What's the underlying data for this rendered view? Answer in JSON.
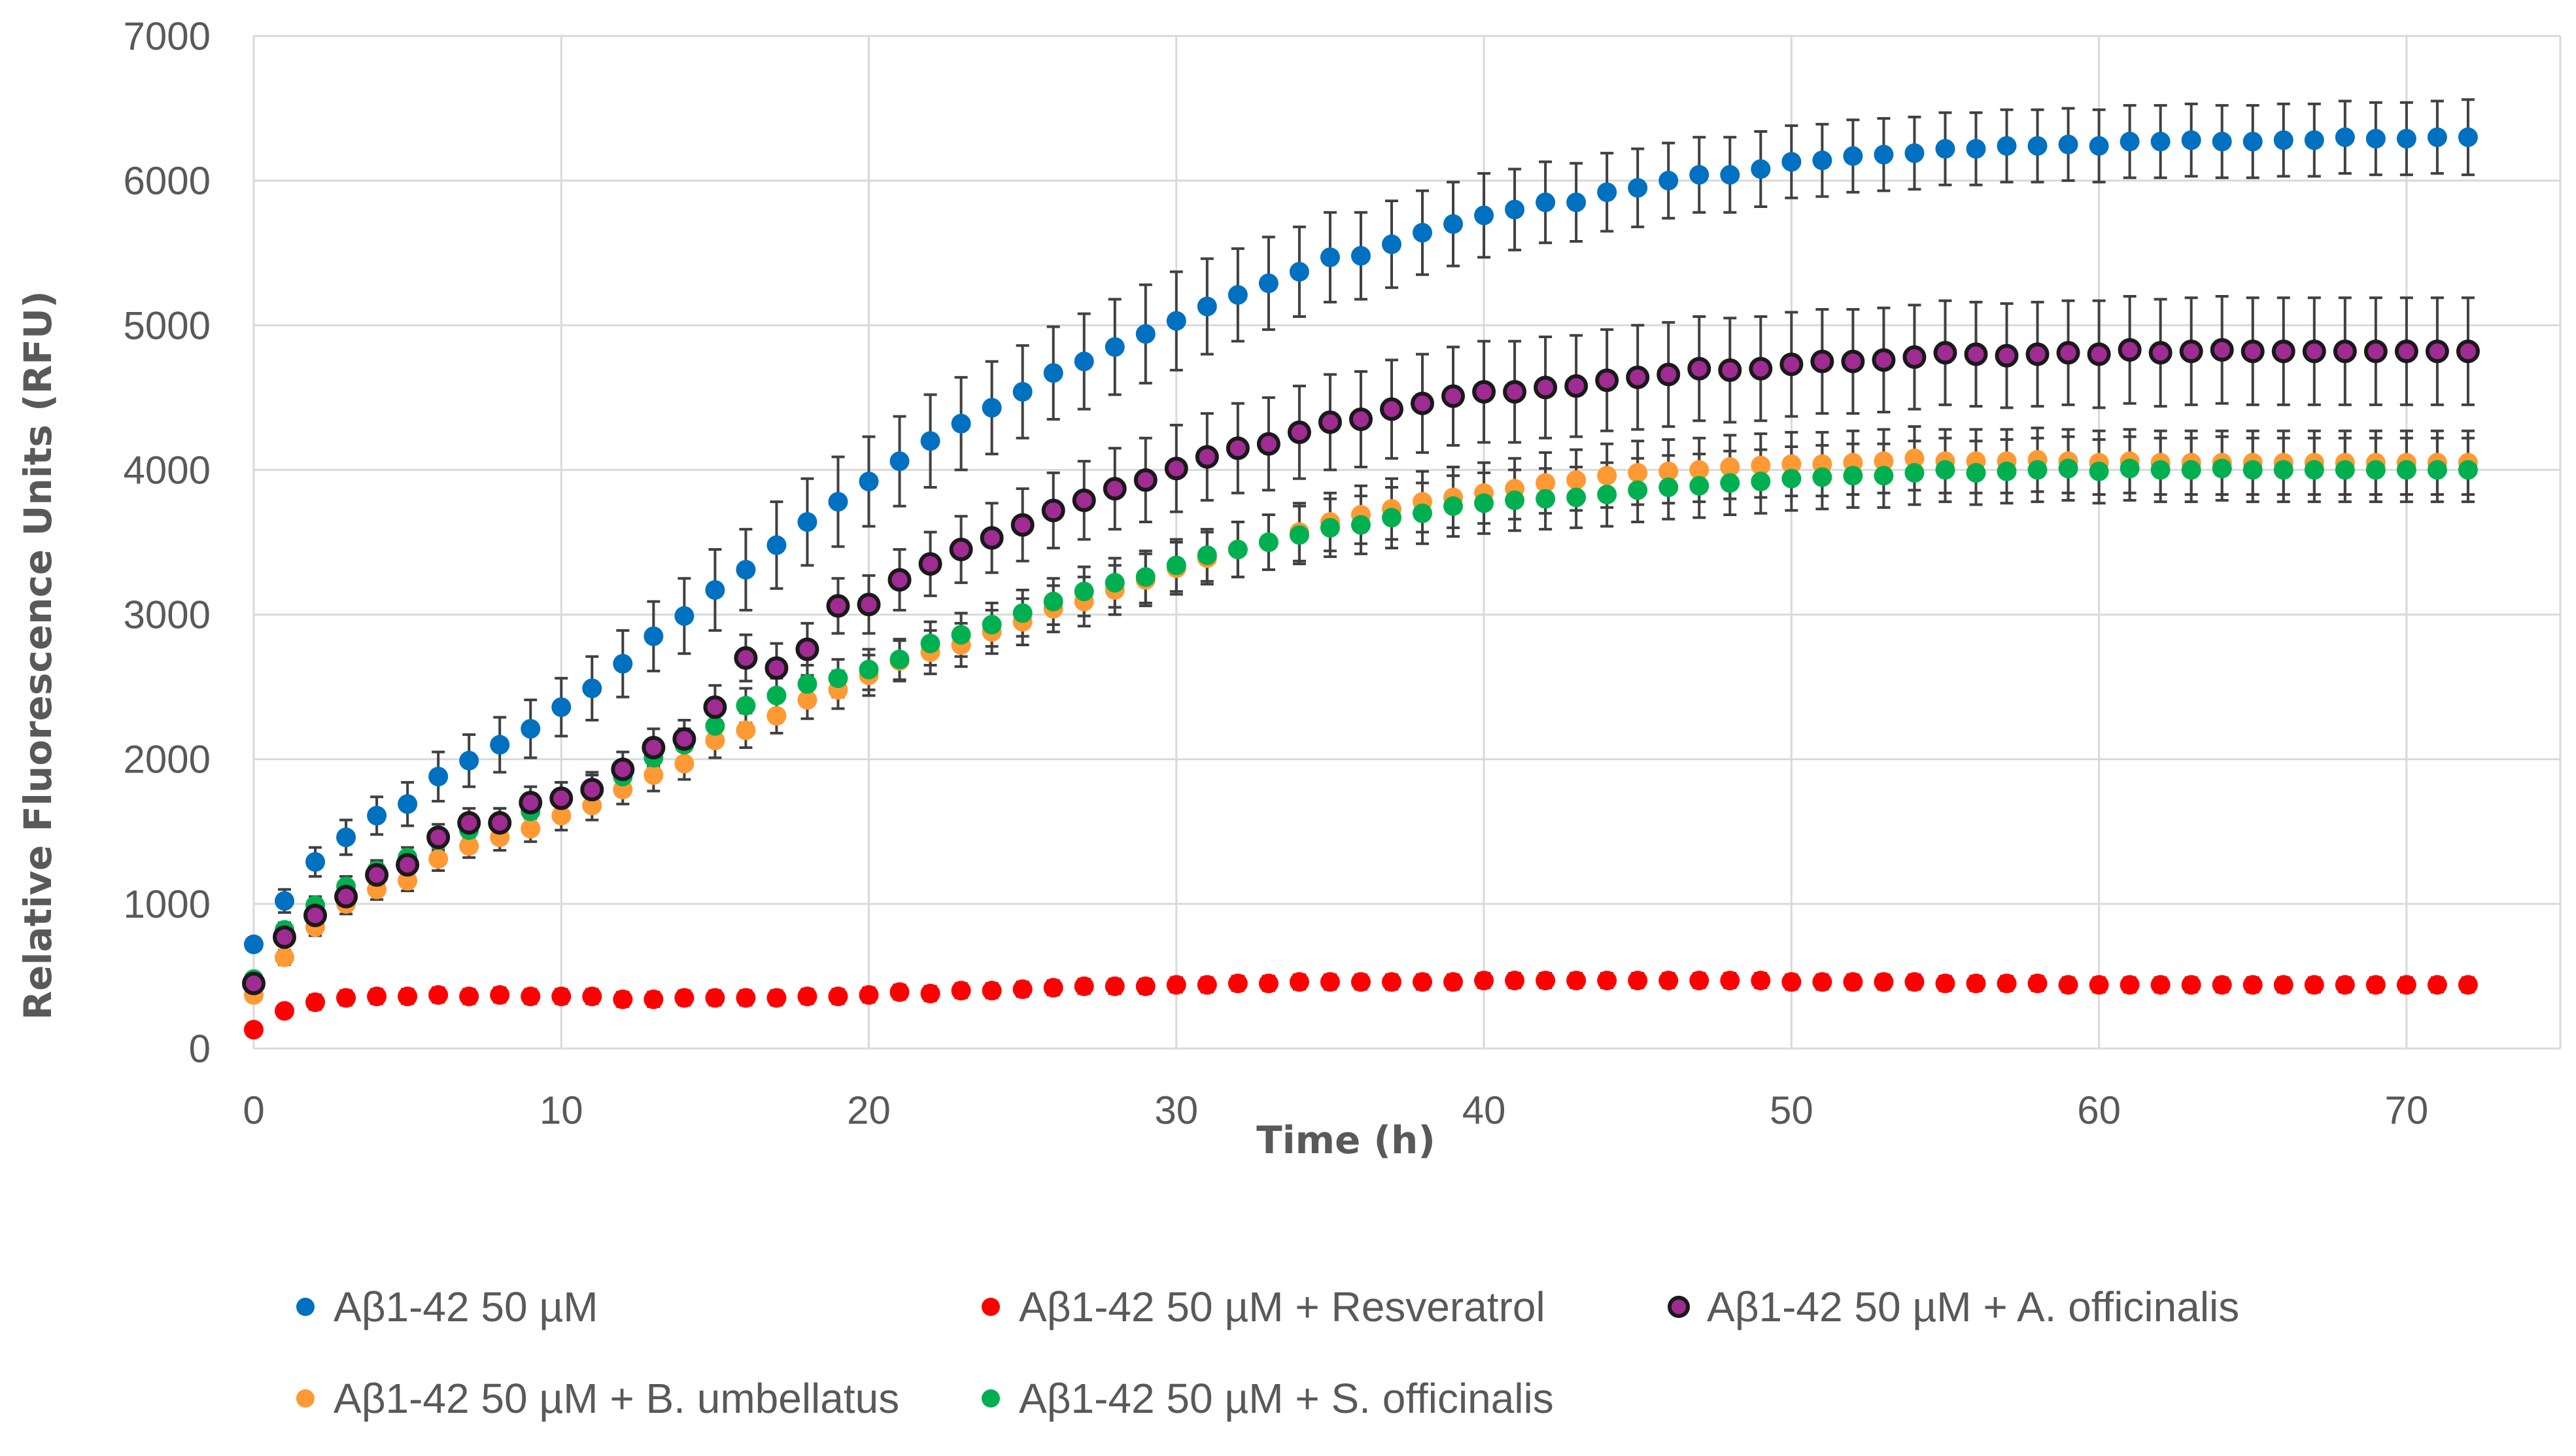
{
  "chart_data": {
    "type": "scatter",
    "title": "",
    "xlabel": "Time (h)",
    "ylabel": "Relative Fluorescence Units (RFU)",
    "xlim": [
      0,
      75
    ],
    "ylim": [
      0,
      7000
    ],
    "x_ticks": [
      0,
      10,
      20,
      30,
      40,
      50,
      60,
      70
    ],
    "y_ticks": [
      0,
      1000,
      2000,
      3000,
      4000,
      5000,
      6000,
      7000
    ],
    "grid": "both",
    "legend_position": "bottom",
    "error_bars": true,
    "x": [
      0,
      1,
      2,
      3,
      4,
      5,
      6,
      7,
      8,
      9,
      10,
      11,
      12,
      13,
      14,
      15,
      16,
      17,
      18,
      19,
      20,
      21,
      22,
      23,
      24,
      25,
      26,
      27,
      28,
      29,
      30,
      31,
      32,
      33,
      34,
      35,
      36,
      37,
      38,
      39,
      40,
      41,
      42,
      43,
      44,
      45,
      46,
      47,
      48,
      49,
      50,
      51,
      52,
      53,
      54,
      55,
      56,
      57,
      58,
      59,
      60,
      61,
      62,
      63,
      64,
      65,
      66,
      67,
      68,
      69,
      70,
      71,
      72
    ],
    "series": [
      {
        "name": "Aβ1-42 50 µM",
        "color": "#0070C0",
        "outline": "none",
        "values": [
          720,
          1020,
          1290,
          1460,
          1610,
          1690,
          1880,
          1990,
          2100,
          2210,
          2360,
          2490,
          2660,
          2850,
          2990,
          3170,
          3310,
          3480,
          3640,
          3780,
          3920,
          4060,
          4200,
          4320,
          4430,
          4540,
          4670,
          4750,
          4850,
          4940,
          5030,
          5130,
          5210,
          5290,
          5370,
          5470,
          5480,
          5560,
          5640,
          5700,
          5760,
          5800,
          5850,
          5850,
          5920,
          5950,
          6000,
          6040,
          6040,
          6080,
          6130,
          6140,
          6170,
          6180,
          6190,
          6220,
          6220,
          6240,
          6240,
          6250,
          6240,
          6270,
          6270,
          6280,
          6270,
          6270,
          6280,
          6280,
          6300,
          6290,
          6290,
          6300,
          6300
        ],
        "errors": [
          40,
          80,
          100,
          120,
          130,
          150,
          170,
          180,
          190,
          200,
          200,
          220,
          230,
          240,
          260,
          280,
          280,
          300,
          300,
          310,
          310,
          310,
          320,
          320,
          320,
          320,
          320,
          330,
          330,
          340,
          340,
          330,
          320,
          320,
          310,
          310,
          300,
          300,
          290,
          290,
          290,
          280,
          280,
          270,
          270,
          270,
          260,
          260,
          260,
          260,
          250,
          250,
          250,
          250,
          250,
          250,
          250,
          250,
          250,
          250,
          250,
          250,
          250,
          250,
          250,
          250,
          250,
          250,
          250,
          250,
          250,
          250,
          260
        ]
      },
      {
        "name": "Aβ1-42 50 µM  + Resveratrol",
        "color": "#FF0000",
        "outline": "none",
        "values": [
          130,
          260,
          320,
          350,
          360,
          360,
          370,
          360,
          370,
          360,
          360,
          360,
          340,
          340,
          350,
          350,
          350,
          350,
          360,
          360,
          370,
          390,
          380,
          400,
          400,
          410,
          420,
          430,
          430,
          430,
          440,
          440,
          450,
          450,
          460,
          460,
          460,
          460,
          460,
          460,
          470,
          470,
          470,
          470,
          470,
          470,
          470,
          470,
          470,
          470,
          460,
          460,
          460,
          460,
          460,
          450,
          450,
          450,
          450,
          440,
          440,
          440,
          440,
          440,
          440,
          440,
          440,
          440,
          440,
          440,
          440,
          440,
          440
        ],
        "errors": [
          20,
          40,
          50,
          50,
          50,
          50,
          50,
          50,
          50,
          50,
          50,
          50,
          50,
          50,
          50,
          50,
          50,
          50,
          50,
          50,
          50,
          50,
          50,
          50,
          50,
          50,
          50,
          50,
          50,
          50,
          50,
          50,
          50,
          50,
          50,
          50,
          50,
          50,
          50,
          50,
          50,
          50,
          50,
          50,
          50,
          50,
          50,
          50,
          50,
          50,
          50,
          50,
          50,
          50,
          50,
          50,
          50,
          50,
          50,
          50,
          50,
          50,
          50,
          50,
          50,
          50,
          50,
          50,
          50,
          50,
          50,
          50,
          50
        ]
      },
      {
        "name": "Aβ1-42 50 µM + A. officinalis",
        "color": "#A02B93",
        "outline": "#1a1a1a",
        "values": [
          450,
          770,
          920,
          1050,
          1200,
          1270,
          1460,
          1560,
          1560,
          1700,
          1730,
          1790,
          1930,
          2080,
          2140,
          2360,
          2700,
          2630,
          2760,
          3060,
          3070,
          3240,
          3350,
          3450,
          3530,
          3620,
          3720,
          3790,
          3870,
          3930,
          4010,
          4090,
          4150,
          4180,
          4260,
          4330,
          4350,
          4420,
          4460,
          4510,
          4540,
          4540,
          4570,
          4580,
          4620,
          4640,
          4660,
          4700,
          4690,
          4700,
          4730,
          4750,
          4750,
          4760,
          4780,
          4810,
          4800,
          4790,
          4800,
          4810,
          4800,
          4830,
          4810,
          4820,
          4830,
          4820,
          4820,
          4820,
          4820,
          4820,
          4820,
          4820,
          4820
        ],
        "errors": [
          40,
          60,
          70,
          80,
          80,
          80,
          90,
          100,
          100,
          110,
          110,
          120,
          120,
          130,
          130,
          150,
          160,
          170,
          180,
          190,
          200,
          210,
          220,
          230,
          240,
          250,
          260,
          270,
          280,
          290,
          300,
          300,
          310,
          320,
          320,
          330,
          330,
          340,
          340,
          340,
          350,
          350,
          350,
          350,
          350,
          360,
          360,
          360,
          360,
          360,
          360,
          360,
          360,
          360,
          360,
          360,
          360,
          360,
          360,
          360,
          370,
          370,
          370,
          370,
          370,
          370,
          370,
          370,
          370,
          370,
          370,
          370,
          370
        ]
      },
      {
        "name": "Aβ1-42 50 µM + B. umbellatus",
        "color": "#FF9933",
        "outline": "none",
        "values": [
          370,
          630,
          840,
          1000,
          1100,
          1160,
          1310,
          1400,
          1460,
          1520,
          1610,
          1680,
          1790,
          1890,
          1970,
          2130,
          2200,
          2300,
          2410,
          2480,
          2580,
          2680,
          2740,
          2790,
          2880,
          2950,
          3040,
          3090,
          3170,
          3240,
          3320,
          3390,
          3450,
          3500,
          3570,
          3640,
          3690,
          3730,
          3780,
          3810,
          3840,
          3870,
          3910,
          3930,
          3960,
          3980,
          3990,
          4000,
          4020,
          4030,
          4040,
          4040,
          4050,
          4060,
          4080,
          4060,
          4060,
          4060,
          4070,
          4060,
          4050,
          4060,
          4050,
          4050,
          4050,
          4050,
          4050,
          4050,
          4050,
          4050,
          4050,
          4050,
          4050
        ],
        "errors": [
          30,
          50,
          60,
          70,
          70,
          70,
          80,
          80,
          90,
          90,
          100,
          100,
          100,
          110,
          110,
          120,
          120,
          120,
          130,
          130,
          140,
          140,
          150,
          150,
          150,
          160,
          160,
          170,
          170,
          180,
          180,
          180,
          190,
          190,
          200,
          200,
          200,
          210,
          210,
          210,
          210,
          210,
          210,
          210,
          220,
          220,
          220,
          220,
          220,
          220,
          220,
          220,
          220,
          220,
          220,
          220,
          220,
          220,
          220,
          220,
          220,
          220,
          220,
          220,
          220,
          220,
          220,
          220,
          220,
          220,
          220,
          220,
          220
        ]
      },
      {
        "name": "Aβ1-42 50 µM + S. officinalis",
        "color": "#00B050",
        "outline": "none",
        "values": [
          480,
          820,
          990,
          1120,
          1230,
          1320,
          1440,
          1510,
          1570,
          1640,
          1740,
          1790,
          1880,
          2010,
          2100,
          2230,
          2370,
          2440,
          2520,
          2560,
          2620,
          2690,
          2800,
          2860,
          2930,
          3010,
          3090,
          3160,
          3220,
          3260,
          3340,
          3410,
          3450,
          3500,
          3550,
          3600,
          3620,
          3670,
          3700,
          3750,
          3770,
          3790,
          3800,
          3810,
          3830,
          3860,
          3880,
          3890,
          3910,
          3920,
          3940,
          3950,
          3960,
          3960,
          3980,
          4000,
          3980,
          3990,
          4000,
          4010,
          3990,
          4010,
          4000,
          4000,
          4010,
          4000,
          4000,
          4000,
          4000,
          4000,
          4000,
          4000,
          4000
        ],
        "errors": [
          30,
          50,
          60,
          70,
          70,
          70,
          80,
          80,
          90,
          90,
          100,
          100,
          100,
          110,
          110,
          120,
          120,
          120,
          130,
          130,
          140,
          140,
          150,
          150,
          150,
          160,
          160,
          170,
          170,
          180,
          180,
          180,
          190,
          190,
          200,
          200,
          200,
          210,
          210,
          210,
          210,
          210,
          210,
          210,
          220,
          220,
          220,
          220,
          220,
          220,
          220,
          220,
          220,
          220,
          220,
          220,
          220,
          220,
          220,
          220,
          220,
          220,
          220,
          220,
          220,
          220,
          220,
          220,
          220,
          220,
          220,
          220,
          220
        ]
      }
    ]
  }
}
